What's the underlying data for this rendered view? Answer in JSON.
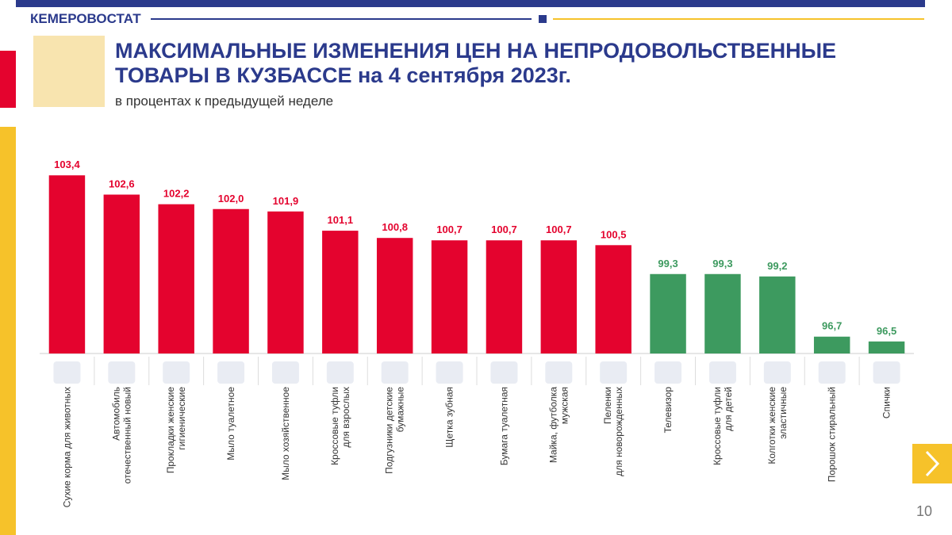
{
  "header": {
    "org": "КЕМЕРОВОСТАТ",
    "page_number": "10"
  },
  "chart_data": {
    "type": "bar",
    "title": "МАКСИМАЛЬНЫЕ ИЗМЕНЕНИЯ ЦЕН НА НЕПРОДОВОЛЬСТВЕННЫЕ",
    "title_line2": "ТОВАРЫ В КУЗБАССЕ на 4 сентября 2023г.",
    "subtitle": "в процентах к предыдущей неделе",
    "categories": [
      "Сухие корма для животных",
      "Автомобиль\nотечественный новый",
      "Прокладки женские\nгигиенические",
      "Мыло туалетное",
      "Мыло хозяйственное",
      "Кроссовые туфли\nдля взрослых",
      "Подгузники детские\nбумажные",
      "Щетка зубная",
      "Бумага туалетная",
      "Майка, футболка\nмужская",
      "Пеленки\nдля новорожденных",
      "Телевизор",
      "Кроссовые туфли\nдля детей",
      "Колготки женские\nэластичные",
      "Порошок стиральный",
      "Спички"
    ],
    "values": [
      103.4,
      102.6,
      102.2,
      102.0,
      101.9,
      101.1,
      100.8,
      100.7,
      100.7,
      100.7,
      100.5,
      99.3,
      99.3,
      99.2,
      96.7,
      96.5
    ],
    "value_labels": [
      "103,4",
      "102,6",
      "102,2",
      "102,0",
      "101,9",
      "101,1",
      "100,8",
      "100,7",
      "100,7",
      "100,7",
      "100,5",
      "99,3",
      "99,3",
      "99,2",
      "96,7",
      "96,5"
    ],
    "colors": [
      "#e4032e",
      "#e4032e",
      "#e4032e",
      "#e4032e",
      "#e4032e",
      "#e4032e",
      "#e4032e",
      "#e4032e",
      "#e4032e",
      "#e4032e",
      "#e4032e",
      "#3d9a5f",
      "#3d9a5f",
      "#3d9a5f",
      "#3d9a5f",
      "#3d9a5f"
    ],
    "ylim": [
      96,
      104
    ]
  }
}
